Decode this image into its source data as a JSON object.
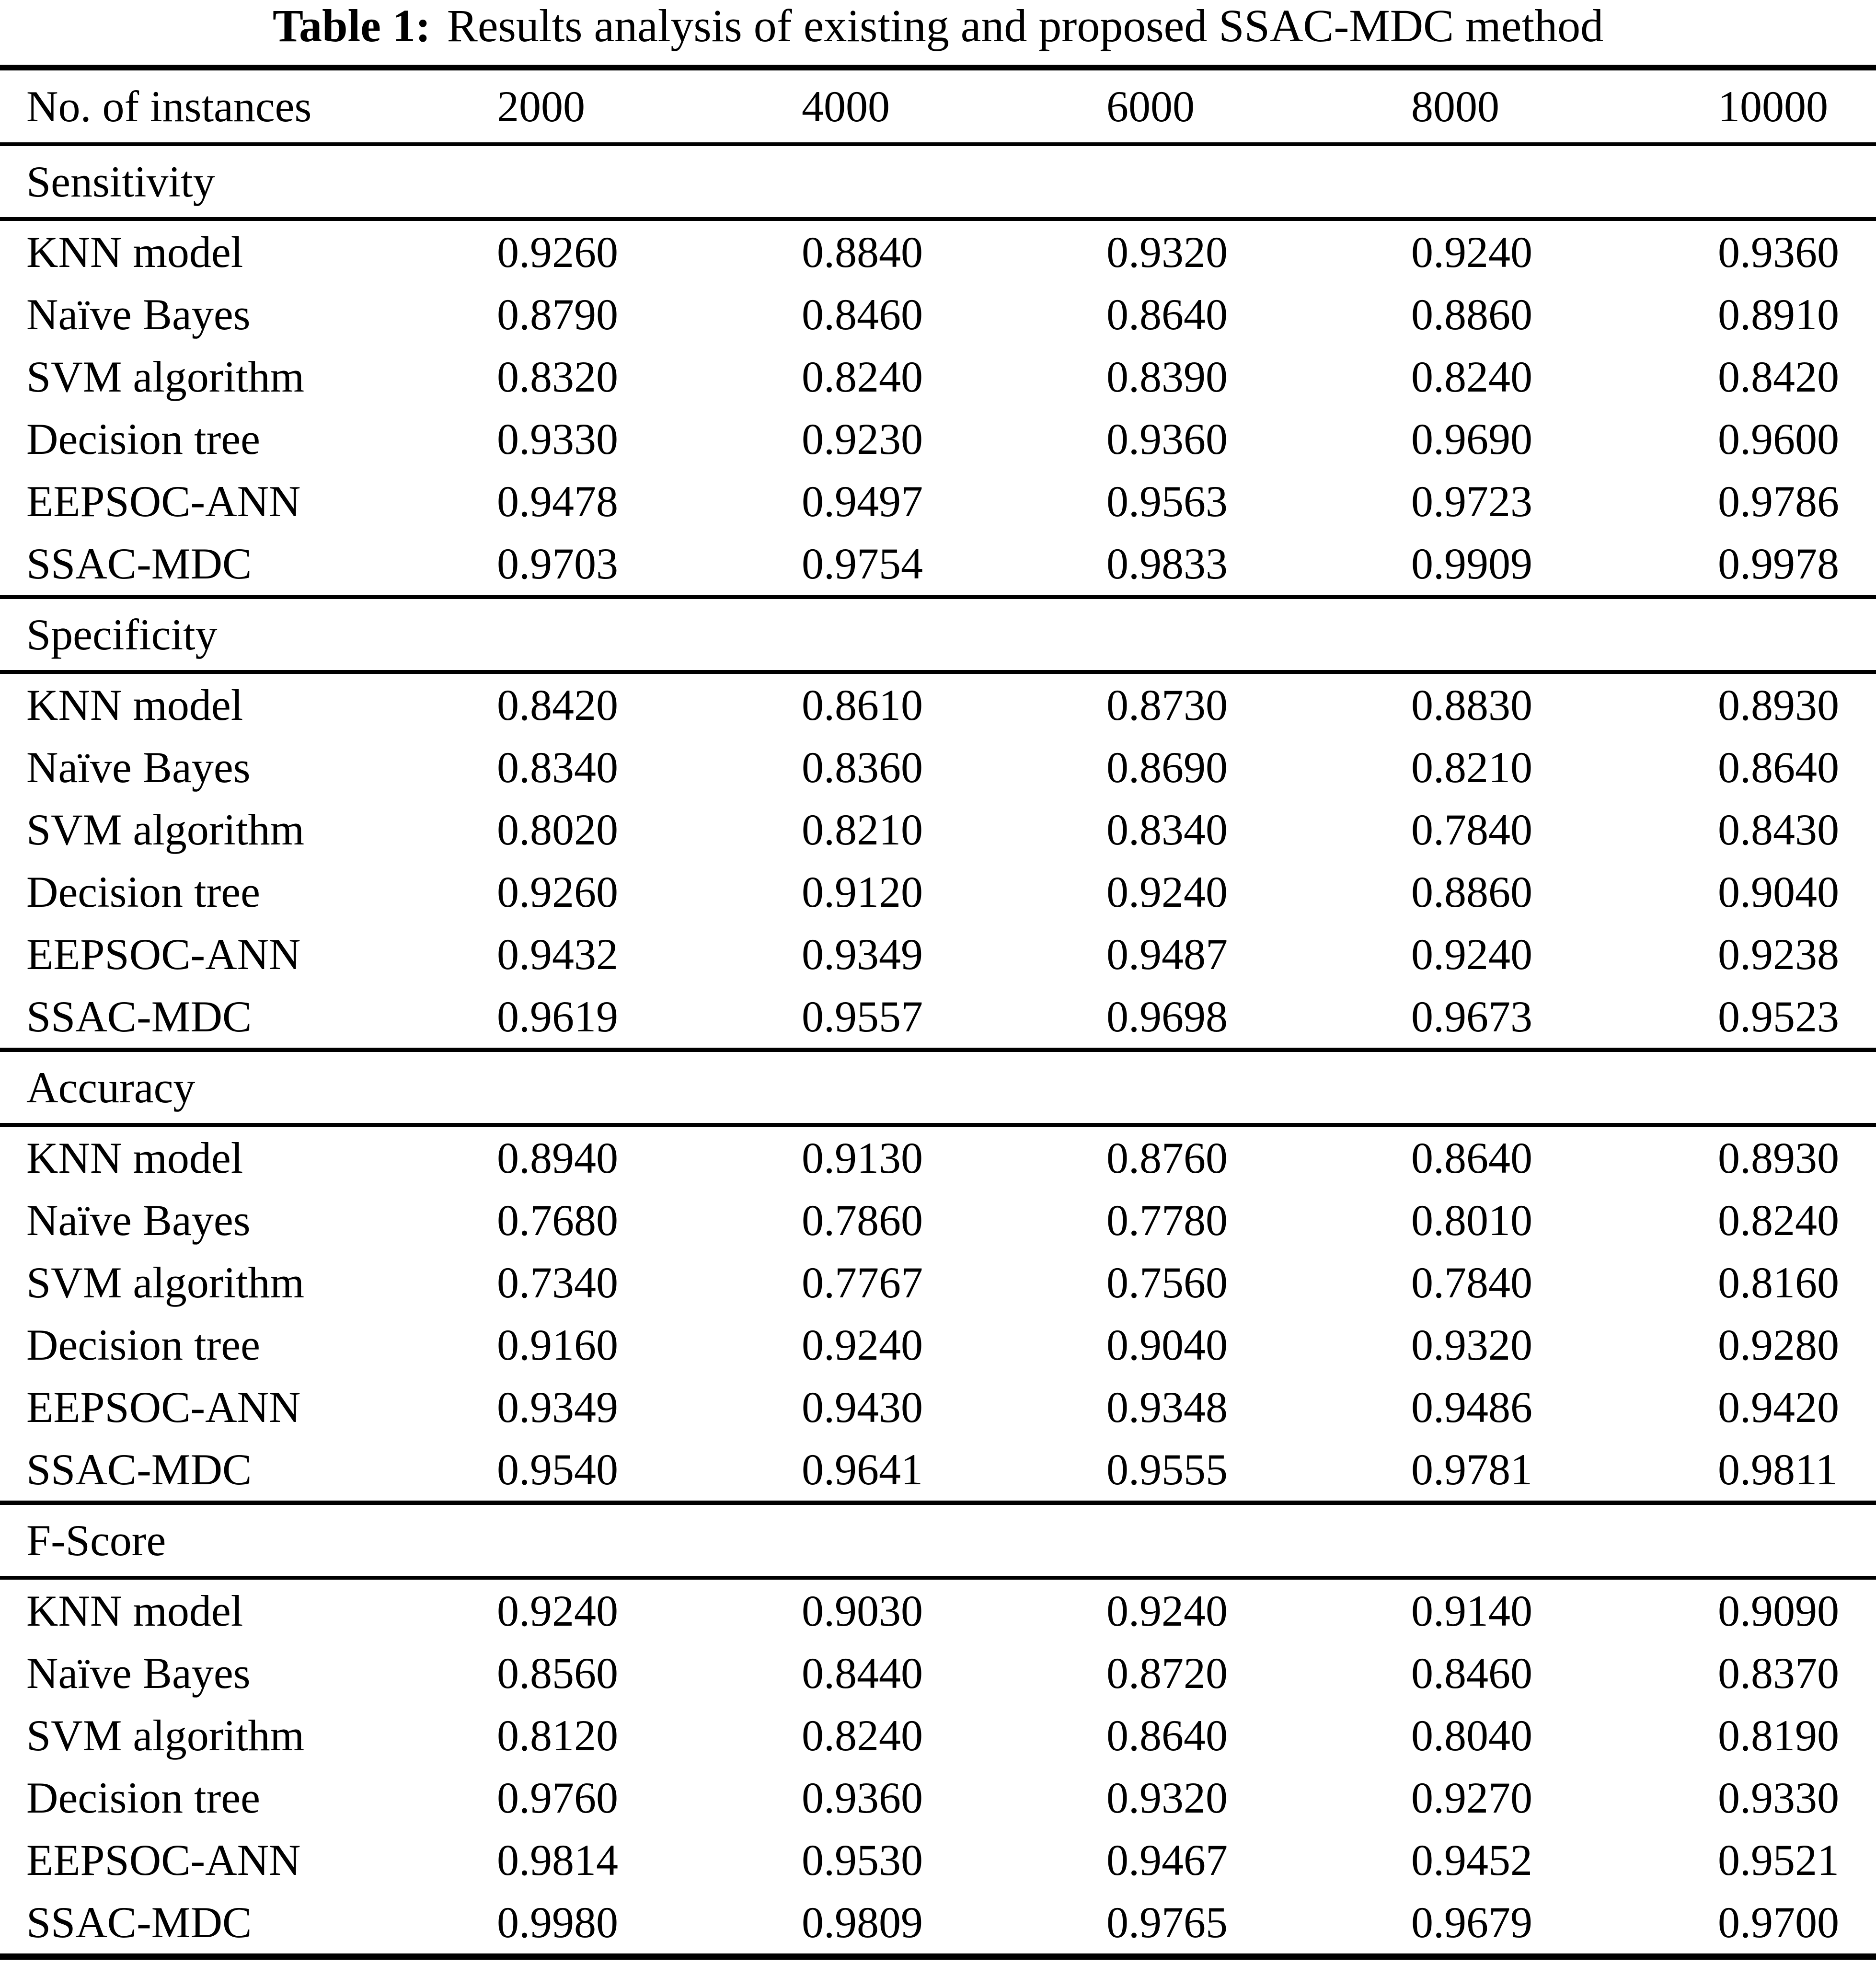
{
  "colors": {
    "background": "#ffffff",
    "text": "#000000",
    "rule": "#000000"
  },
  "title": {
    "label": "Table 1:",
    "text": "Results analysis of existing and proposed SSAC-MDC method"
  },
  "table": {
    "header": [
      "No. of instances",
      "2000",
      "4000",
      "6000",
      "8000",
      "10000"
    ],
    "sections": [
      {
        "label": "Sensitivity",
        "rows": [
          {
            "model": "KNN model",
            "values": [
              "0.9260",
              "0.8840",
              "0.9320",
              "0.9240",
              "0.9360"
            ]
          },
          {
            "model": "Naïve Bayes",
            "values": [
              "0.8790",
              "0.8460",
              "0.8640",
              "0.8860",
              "0.8910"
            ]
          },
          {
            "model": "SVM algorithm",
            "values": [
              "0.8320",
              "0.8240",
              "0.8390",
              "0.8240",
              "0.8420"
            ]
          },
          {
            "model": "Decision tree",
            "values": [
              "0.9330",
              "0.9230",
              "0.9360",
              "0.9690",
              "0.9600"
            ]
          },
          {
            "model": "EEPSOC-ANN",
            "values": [
              "0.9478",
              "0.9497",
              "0.9563",
              "0.9723",
              "0.9786"
            ]
          },
          {
            "model": "SSAC-MDC",
            "values": [
              "0.9703",
              "0.9754",
              "0.9833",
              "0.9909",
              "0.9978"
            ]
          }
        ]
      },
      {
        "label": "Specificity",
        "rows": [
          {
            "model": "KNN model",
            "values": [
              "0.8420",
              "0.8610",
              "0.8730",
              "0.8830",
              "0.8930"
            ]
          },
          {
            "model": "Naïve Bayes",
            "values": [
              "0.8340",
              "0.8360",
              "0.8690",
              "0.8210",
              "0.8640"
            ]
          },
          {
            "model": "SVM algorithm",
            "values": [
              "0.8020",
              "0.8210",
              "0.8340",
              "0.7840",
              "0.8430"
            ]
          },
          {
            "model": "Decision tree",
            "values": [
              "0.9260",
              "0.9120",
              "0.9240",
              "0.8860",
              "0.9040"
            ]
          },
          {
            "model": "EEPSOC-ANN",
            "values": [
              "0.9432",
              "0.9349",
              "0.9487",
              "0.9240",
              "0.9238"
            ]
          },
          {
            "model": "SSAC-MDC",
            "values": [
              "0.9619",
              "0.9557",
              "0.9698",
              "0.9673",
              "0.9523"
            ]
          }
        ]
      },
      {
        "label": "Accuracy",
        "rows": [
          {
            "model": "KNN model",
            "values": [
              "0.8940",
              "0.9130",
              "0.8760",
              "0.8640",
              "0.8930"
            ]
          },
          {
            "model": "Naïve Bayes",
            "values": [
              "0.7680",
              "0.7860",
              "0.7780",
              "0.8010",
              "0.8240"
            ]
          },
          {
            "model": "SVM algorithm",
            "values": [
              "0.7340",
              "0.7767",
              "0.7560",
              "0.7840",
              "0.8160"
            ]
          },
          {
            "model": "Decision tree",
            "values": [
              "0.9160",
              "0.9240",
              "0.9040",
              "0.9320",
              "0.9280"
            ]
          },
          {
            "model": "EEPSOC-ANN",
            "values": [
              "0.9349",
              "0.9430",
              "0.9348",
              "0.9486",
              "0.9420"
            ]
          },
          {
            "model": "SSAC-MDC",
            "values": [
              "0.9540",
              "0.9641",
              "0.9555",
              "0.9781",
              "0.9811"
            ]
          }
        ]
      },
      {
        "label": "F-Score",
        "rows": [
          {
            "model": "KNN model",
            "values": [
              "0.9240",
              "0.9030",
              "0.9240",
              "0.9140",
              "0.9090"
            ]
          },
          {
            "model": "Naïve Bayes",
            "values": [
              "0.8560",
              "0.8440",
              "0.8720",
              "0.8460",
              "0.8370"
            ]
          },
          {
            "model": "SVM algorithm",
            "values": [
              "0.8120",
              "0.8240",
              "0.8640",
              "0.8040",
              "0.8190"
            ]
          },
          {
            "model": "Decision tree",
            "values": [
              "0.9760",
              "0.9360",
              "0.9320",
              "0.9270",
              "0.9330"
            ]
          },
          {
            "model": "EEPSOC-ANN",
            "values": [
              "0.9814",
              "0.9530",
              "0.9467",
              "0.9452",
              "0.9521"
            ]
          },
          {
            "model": "SSAC-MDC",
            "values": [
              "0.9980",
              "0.9809",
              "0.9765",
              "0.9679",
              "0.9700"
            ]
          }
        ]
      }
    ]
  }
}
